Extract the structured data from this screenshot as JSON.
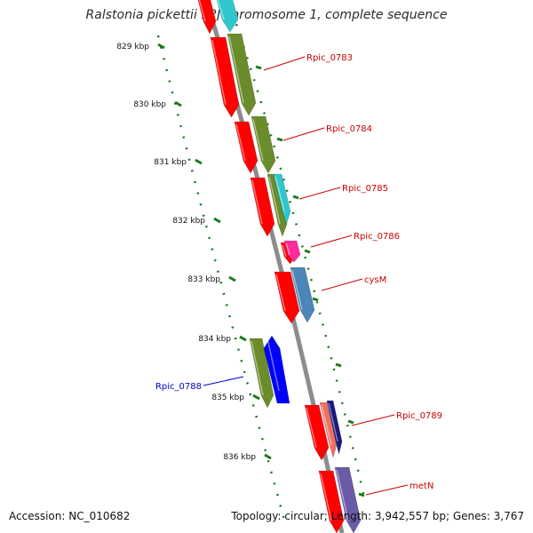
{
  "title": "Ralstonia pickettii 12J chromosome 1, complete sequence",
  "footer": {
    "accession": "Accession: NC_010682",
    "topology": "Topology: circular; Length: 3,942,557 bp; Genes: 3,767"
  },
  "ruler": {
    "unit": "kbp",
    "ticks": [
      {
        "kbp": 829,
        "label": "829 kbp"
      },
      {
        "kbp": 830,
        "label": "830 kbp"
      },
      {
        "kbp": 831,
        "label": "831 kbp"
      },
      {
        "kbp": 832,
        "label": "832 kbp"
      },
      {
        "kbp": 833,
        "label": "833 kbp"
      },
      {
        "kbp": 834,
        "label": "834 kbp"
      },
      {
        "kbp": 835,
        "label": "835 kbp"
      },
      {
        "kbp": 836,
        "label": "836 kbp"
      }
    ]
  },
  "genes": [
    {
      "label": "Rpic_0783",
      "color": "#cc0000"
    },
    {
      "label": "Rpic_0784",
      "color": "#cc0000"
    },
    {
      "label": "Rpic_0785",
      "color": "#cc0000"
    },
    {
      "label": "Rpic_0786",
      "color": "#cc0000"
    },
    {
      "label": "cysM",
      "color": "#cc0000"
    },
    {
      "label": "Rpic_0788",
      "color": "#0000cc"
    },
    {
      "label": "Rpic_0789",
      "color": "#cc0000"
    },
    {
      "label": "metN",
      "color": "#cc0000"
    }
  ],
  "colors": {
    "backbone": "#8c8c8c",
    "ruler": "#1a7a1a",
    "cds_forward": "#ff0000",
    "cds_reverse": "#0000ff",
    "olive": "#6b8c2a",
    "cyan": "#2ec8cc",
    "magenta": "#ff2d9b",
    "steelblue": "#4a86b8",
    "salmon": "#f07060",
    "navy": "#1a1a80",
    "slate": "#6a5aa8"
  }
}
